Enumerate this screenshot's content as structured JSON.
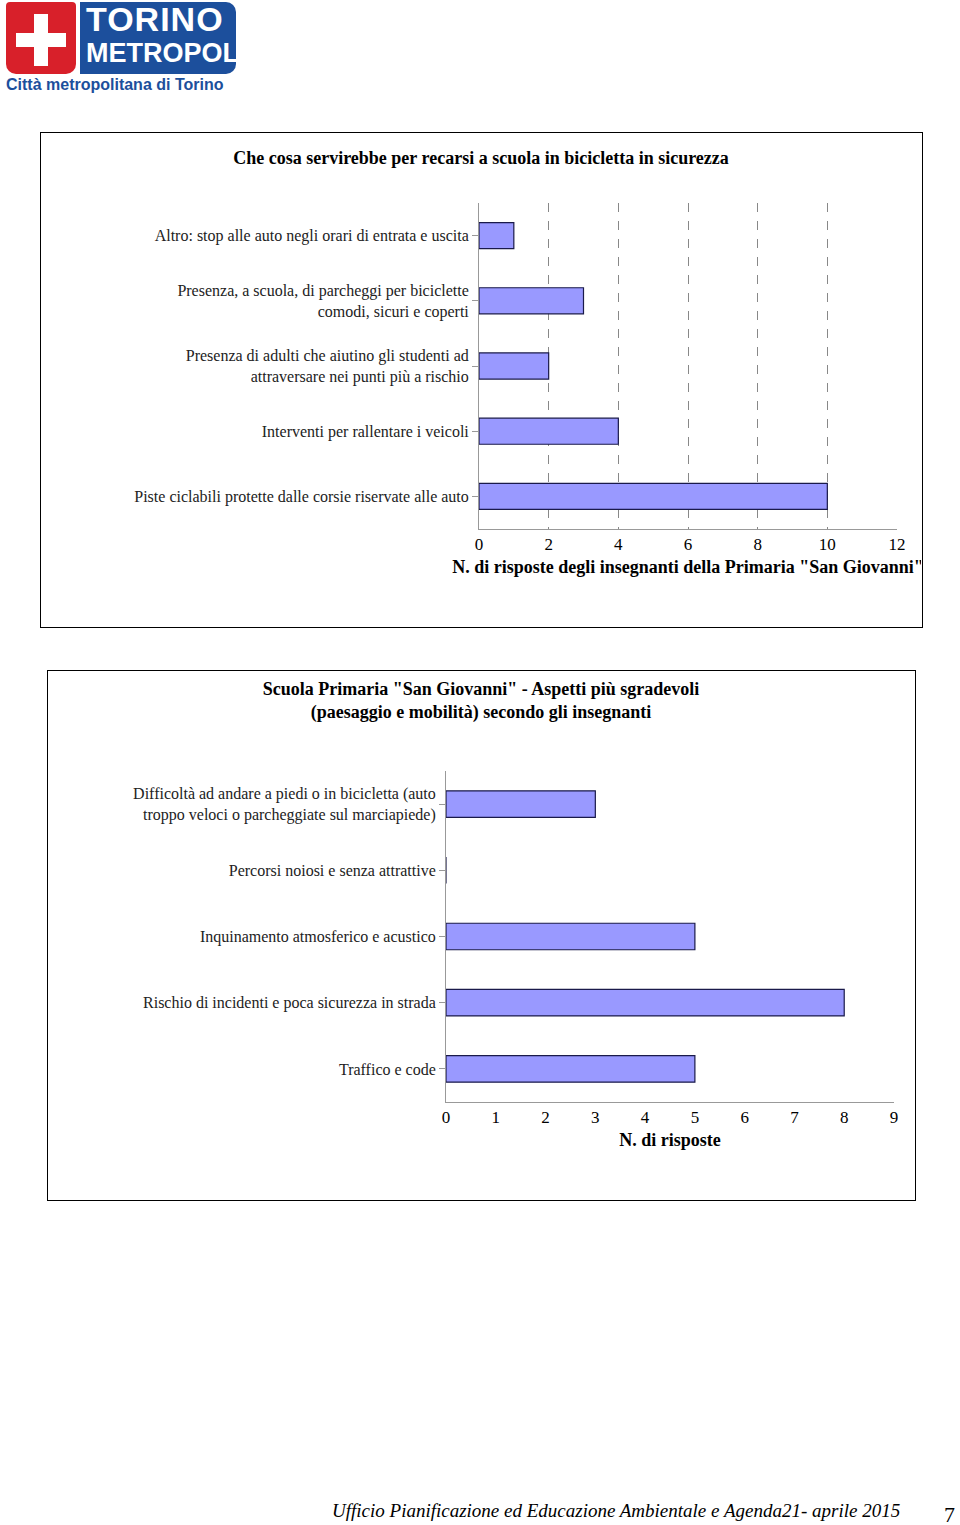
{
  "header": {
    "logo_line1": "TORINO",
    "logo_line2": "METROPOLI",
    "logo_subtitle": "Città metropolitana di Torino"
  },
  "chart_data": [
    {
      "type": "bar",
      "orientation": "horizontal",
      "title": "Che cosa servirebbe per recarsi a scuola in bicicletta in sicurezza",
      "x_label": "N. di risposte degli insegnanti della Primaria \"San Giovanni\"",
      "categories": [
        "Altro: stop alle auto negli orari di entrata e uscita",
        "Presenza, a scuola, di parcheggi per biciclette\ncomodi, sicuri e coperti",
        "Presenza di adulti che aiutino gli studenti ad\nattraversare nei punti più a rischio",
        "Interventi per rallentare i veicoli",
        "Piste ciclabili protette dalle corsie riservate alle auto"
      ],
      "values": [
        1,
        3,
        2,
        4,
        10
      ],
      "color": "#9999ff",
      "xlim": [
        0,
        12
      ],
      "xticks": [
        0,
        2,
        4,
        6,
        8,
        10,
        12
      ],
      "grid": true
    },
    {
      "type": "bar",
      "orientation": "horizontal",
      "title": "Scuola Primaria \"San Giovanni\" - Aspetti più sgradevoli\n(paesaggio e mobilità) secondo gli insegnanti",
      "x_label": "N. di risposte",
      "categories": [
        "Difficoltà ad andare a piedi o in bicicletta (auto\ntroppo veloci o parcheggiate sul marciapiede)",
        "Percorsi noiosi e senza attrattive",
        "Inquinamento atmosferico e acustico",
        "Rischio di incidenti e poca sicurezza in strada",
        "Traffico e code"
      ],
      "values": [
        3,
        0,
        5,
        8,
        5
      ],
      "color": "#9999ff",
      "xlim": [
        0,
        9
      ],
      "xticks": [
        0,
        1,
        2,
        3,
        4,
        5,
        6,
        7,
        8,
        9
      ],
      "grid": false
    }
  ],
  "footer": {
    "text": "Ufficio Pianificazione ed Educazione Ambientale e Agenda21- aprile 2015",
    "page": "7"
  }
}
